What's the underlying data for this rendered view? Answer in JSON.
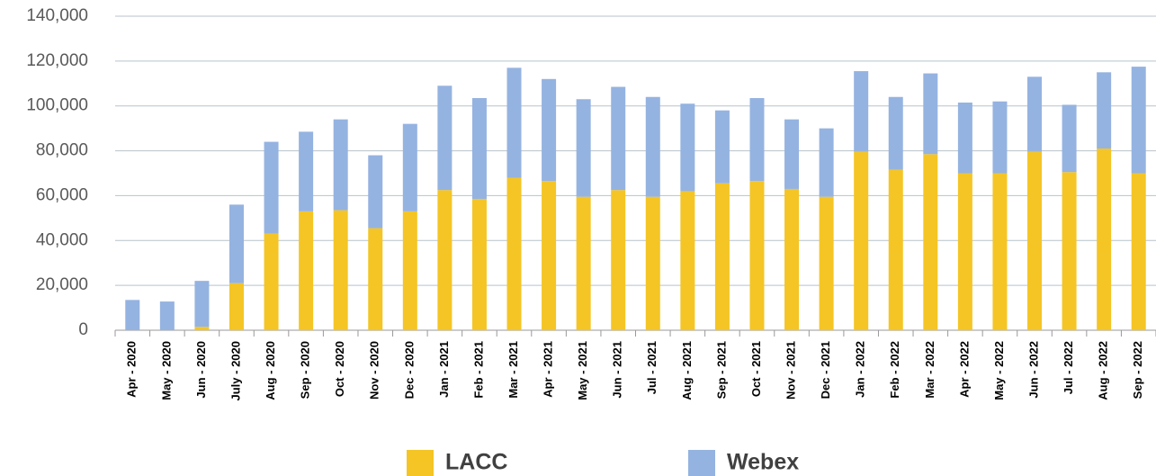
{
  "chart_data": {
    "type": "stacked_bar",
    "categories": [
      "Apr - 2020",
      "May - 2020",
      "Jun - 2020",
      "July - 2020",
      "Aug - 2020",
      "Sep - 2020",
      "Oct - 2020",
      "Nov - 2020",
      "Dec - 2020",
      "Jan - 2021",
      "Feb - 2021",
      "Mar - 2021",
      "Apr - 2021",
      "May - 2021",
      "Jun - 2021",
      "Jul - 2021",
      "Aug - 2021",
      "Sep - 2021",
      "Oct - 2021",
      "Nov - 2021",
      "Dec - 2021",
      "Jan - 2022",
      "Feb - 2022",
      "Mar - 2022",
      "Apr - 2022",
      "May - 2022",
      "Jun - 2022",
      "Jul - 2022",
      "Aug - 2022",
      "Sep - 2022"
    ],
    "series": [
      {
        "name": "LACC",
        "color": "#f4c525",
        "values": [
          0,
          0,
          1500,
          21000,
          43000,
          53000,
          53500,
          45500,
          53000,
          62500,
          58500,
          68000,
          66500,
          59500,
          62500,
          59500,
          62000,
          65500,
          66500,
          63000,
          59500,
          79500,
          71500,
          78500,
          70000,
          70000,
          79500,
          70500,
          81000,
          70000
        ]
      },
      {
        "name": "Webex",
        "color": "#95b3e0",
        "values": [
          13500,
          12800,
          20500,
          35000,
          41000,
          35500,
          40500,
          32500,
          39000,
          46500,
          45000,
          49000,
          45500,
          43500,
          46000,
          44500,
          39000,
          32500,
          37000,
          31000,
          30500,
          36000,
          32500,
          36000,
          31500,
          32000,
          33500,
          30000,
          34000,
          47500
        ]
      }
    ],
    "ylim": [
      0,
      140000
    ],
    "yticks": [
      0,
      {
        "value": 20000,
        "label": "20,000"
      },
      {
        "value": 40000,
        "label": "40,000"
      },
      {
        "value": 60000,
        "label": "60,000"
      },
      {
        "value": 80000,
        "label": "80,000"
      },
      {
        "value": 100000,
        "label": "100,000"
      },
      {
        "value": 120000,
        "label": "120,000"
      },
      {
        "value": 140000,
        "label": "140,000"
      }
    ],
    "grid": true
  }
}
